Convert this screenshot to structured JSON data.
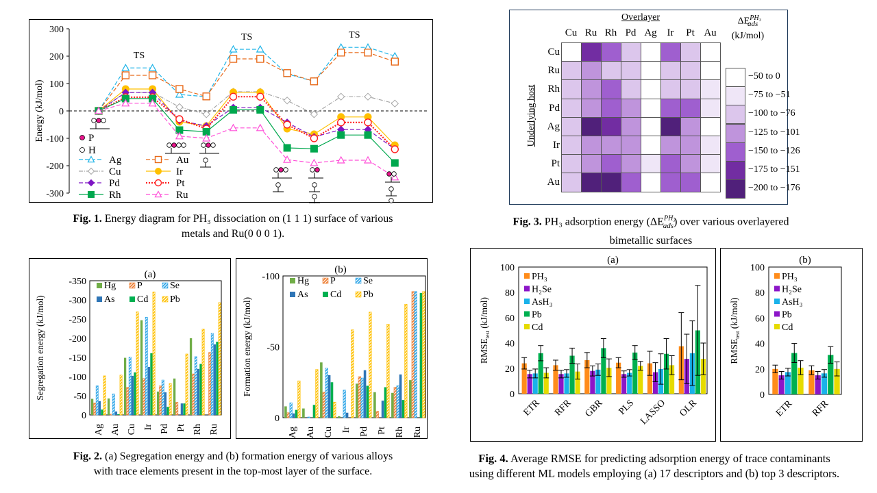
{
  "colors": {
    "Ag": "#1fb4e8",
    "Au": "#e86a1a",
    "Cu": "#a6a6a6",
    "Ir": "#ffc000",
    "Pd": "#7f16c4",
    "Pt": "#ff1f1f",
    "Rh": "#00a84e",
    "Ru": "#ff4fd8",
    "P_atom": "#e8168c",
    "Hg": "#70ad47",
    "P": "#ed7d31",
    "Se": "#2fa6e8",
    "As": "#2e75b6",
    "Cd": "#00b050",
    "Pb": "#ffc000",
    "PH3": "#ff8c1a",
    "H2Se": "#8c16c8",
    "AsH3": "#1ab2ea",
    "Pb_rmse": "#00b050",
    "Cd_rmse": "#e6db00",
    "heat": [
      "#ffffff",
      "#efe6f7",
      "#dcc6ec",
      "#bf94dc",
      "#9f5fcf",
      "#722da2",
      "#50207a"
    ]
  },
  "fig1": {
    "caption_bold": "Fig. 1.",
    "caption_line1": " Energy diagram for PH₃ dissociation on (1 1 1) surface of various",
    "caption_line2": "metals and Ru(0 0 0 1).",
    "legend_atoms": [
      {
        "label": "P"
      },
      {
        "label": "H"
      }
    ],
    "ts_label": "TS"
  },
  "fig2": {
    "caption_bold": "Fig. 2.",
    "caption_line1": " (a) Segregation energy and (b) formation energy of various alloys",
    "caption_line2": "with trace elements present in the top-most layer of the surface."
  },
  "fig3": {
    "caption_bold": "Fig. 3.",
    "caption_line1_pre": " PH₃ adsorption energy (ΔE",
    "caption_sup": "PH₃",
    "caption_sub": "ads",
    "caption_line1_post": ") over various overlayered",
    "caption_line2": "bimetallic  surfaces",
    "overlayer_label": "Overlayer",
    "host_label": "Underlying  host",
    "legend_title_main": "ΔE",
    "legend_title_sup": "PH₃",
    "legend_title_sub": "ads",
    "legend_units": "(kJ/mol)"
  },
  "fig4": {
    "caption_bold": "Fig. 4.",
    "caption_line1": " Average RMSE for predicting adsorption energy of trace contaminants",
    "caption_line2": "using different ML models employing  (a) 17 descriptors and (b) top 3 descriptors."
  },
  "chart_data": [
    {
      "id": "fig1",
      "type": "line",
      "title": "",
      "xlabel": "",
      "ylabel": "Energy (kJ/mol)",
      "ylim": [
        -300,
        300
      ],
      "yticks": [
        -300,
        -200,
        -100,
        0,
        100,
        200,
        300
      ],
      "x": [
        0,
        1,
        2,
        3,
        4,
        5,
        6,
        7,
        8,
        9,
        10,
        11
      ],
      "annotations": [
        {
          "text": "TS",
          "at_x": 1.5
        },
        {
          "text": "TS",
          "at_x": 5.5
        },
        {
          "text": "TS",
          "at_x": 9.5
        }
      ],
      "zero_line": "dashed",
      "legend": "bottom-left",
      "series": [
        {
          "name": "Ag",
          "marker": "triangle-open",
          "dash": "dashed",
          "values": [
            0,
            157,
            157,
            60,
            52,
            225,
            225,
            135,
            108,
            232,
            232,
            200
          ]
        },
        {
          "name": "Au",
          "marker": "square-open",
          "dash": "dashed",
          "values": [
            0,
            130,
            130,
            80,
            53,
            190,
            190,
            138,
            108,
            213,
            213,
            180
          ]
        },
        {
          "name": "Cu",
          "marker": "diamond-open",
          "dash": "dashdot",
          "values": [
            0,
            68,
            68,
            14,
            -12,
            70,
            70,
            38,
            -12,
            52,
            52,
            27
          ]
        },
        {
          "name": "Ir",
          "marker": "circle-filled",
          "dash": "solid",
          "values": [
            0,
            80,
            80,
            -40,
            -55,
            68,
            68,
            -65,
            -85,
            -22,
            -22,
            -125
          ]
        },
        {
          "name": "Pd",
          "marker": "diamond-filled",
          "dash": "dashed",
          "values": [
            0,
            67,
            67,
            -35,
            -55,
            12,
            12,
            -42,
            -95,
            -68,
            -68,
            -140
          ]
        },
        {
          "name": "Pt",
          "marker": "circle-open",
          "dash": "dotted",
          "values": [
            0,
            50,
            50,
            -30,
            -65,
            52,
            52,
            -50,
            -100,
            -42,
            -42,
            -140
          ]
        },
        {
          "name": "Rh",
          "marker": "square-filled",
          "dash": "solid",
          "values": [
            0,
            45,
            45,
            -70,
            -76,
            4,
            4,
            -135,
            -138,
            -88,
            -88,
            -190
          ]
        },
        {
          "name": "Ru",
          "marker": "triangle-open",
          "dash": "dashed",
          "values": [
            0,
            28,
            28,
            -92,
            -100,
            -62,
            -62,
            -178,
            -190,
            -180,
            -180,
            -242
          ]
        }
      ]
    },
    {
      "id": "fig2a",
      "type": "bar",
      "title": "(a)",
      "ylabel": "Segregation  energy  (kJ/mol)",
      "ylim": [
        0,
        -350
      ],
      "yticks": [
        0,
        -50,
        -100,
        -150,
        -200,
        -250,
        -300,
        -350
      ],
      "categories": [
        "Ag",
        "Au",
        "Cu",
        "Ir",
        "Pd",
        "Pt",
        "Rh",
        "Ru"
      ],
      "legend": "top-left",
      "series": [
        {
          "name": "Hg",
          "pattern": "solid",
          "values": [
            -42,
            -43,
            -149,
            -247,
            -61,
            -95,
            -200,
            0
          ]
        },
        {
          "name": "P",
          "pattern": "hatch",
          "values": [
            -31,
            -2,
            -72,
            -95,
            -76,
            -33,
            -107,
            -163
          ]
        },
        {
          "name": "Se",
          "pattern": "hatch",
          "values": [
            -76,
            -55,
            -151,
            -255,
            -91,
            0,
            -152,
            -213
          ]
        },
        {
          "name": "As",
          "pattern": "solid",
          "values": [
            -36,
            -9,
            -102,
            -125,
            -59,
            -30,
            -120,
            -184
          ]
        },
        {
          "name": "Cd",
          "pattern": "solid",
          "values": [
            -14,
            -2,
            -111,
            -161,
            -21,
            -30,
            -133,
            -191
          ]
        },
        {
          "name": "Pb",
          "pattern": "hatch",
          "values": [
            -102,
            -104,
            -269,
            -321,
            -82,
            -159,
            -224,
            -293
          ]
        }
      ]
    },
    {
      "id": "fig2b",
      "type": "bar",
      "title": "(b)",
      "ylabel": "Formation  energy  (kJ/mol)",
      "ylim": [
        0,
        -100
      ],
      "yticks": [
        0,
        -50,
        -100
      ],
      "categories": [
        "Ag",
        "Au",
        "Cu",
        "Ir",
        "Pd",
        "Pt",
        "Rh",
        "Ru"
      ],
      "legend": "top-left",
      "series": [
        {
          "name": "Hg",
          "pattern": "solid",
          "values": [
            -8,
            -6.5,
            -39,
            -1,
            -24,
            -18,
            -17.5,
            -26.5
          ]
        },
        {
          "name": "P",
          "pattern": "hatch",
          "values": [
            -3.5,
            0,
            -18,
            0,
            -29,
            -4.5,
            -21.5,
            -89
          ]
        },
        {
          "name": "Se",
          "pattern": "hatch",
          "values": [
            -10.5,
            -0.5,
            -35,
            -19.5,
            -28,
            0,
            -22.5,
            -89
          ]
        },
        {
          "name": "As",
          "pattern": "solid",
          "values": [
            -3,
            0,
            -30,
            -3.5,
            -33.5,
            -12,
            -30.5,
            0
          ]
        },
        {
          "name": "Cd",
          "pattern": "solid",
          "values": [
            -5.5,
            -9,
            -25,
            0,
            -22.5,
            -21.5,
            -12.5,
            -88
          ]
        },
        {
          "name": "Pb",
          "pattern": "hatch",
          "values": [
            -26,
            -34,
            -11,
            -62,
            -74.5,
            -66,
            -80,
            -89
          ]
        }
      ]
    },
    {
      "id": "fig3",
      "type": "heatmap",
      "title": "",
      "xlabel": "Overlayer",
      "ylabel": "Underlying  host",
      "x_categories": [
        "Cu",
        "Ru",
        "Rh",
        "Pd",
        "Ag",
        "Ir",
        "Pt",
        "Au"
      ],
      "y_categories": [
        "Cu",
        "Ru",
        "Rh",
        "Pd",
        "Ag",
        "Ir",
        "Pt",
        "Au"
      ],
      "legend_bins": [
        "−50 to 0",
        "−75 to −51",
        "−100 to −76",
        "−125 to −101",
        "−150 to −126",
        "−175 to −151",
        "−200 to −176"
      ],
      "bin_index_matrix": [
        [
          0,
          5,
          4,
          2,
          0,
          4,
          2,
          0
        ],
        [
          2,
          3,
          2,
          2,
          0,
          2,
          2,
          0
        ],
        [
          2,
          3,
          4,
          2,
          0,
          2,
          2,
          1
        ],
        [
          2,
          3,
          4,
          3,
          0,
          4,
          4,
          1
        ],
        [
          2,
          6,
          5,
          3,
          0,
          6,
          3,
          0
        ],
        [
          2,
          3,
          3,
          3,
          0,
          3,
          3,
          1
        ],
        [
          2,
          3,
          4,
          3,
          1,
          4,
          3,
          1
        ],
        [
          2,
          6,
          6,
          4,
          0,
          4,
          4,
          0
        ]
      ]
    },
    {
      "id": "fig4a",
      "type": "bar",
      "title": "(a)",
      "ylabel": "RMSE_test (kJ/mol)",
      "ylim": [
        0,
        100
      ],
      "yticks": [
        0,
        20,
        40,
        60,
        80,
        100
      ],
      "categories": [
        "ETR",
        "RFR",
        "GBR",
        "PLS",
        "LASSO",
        "OLR"
      ],
      "legend": "top-left",
      "series": [
        {
          "name": "PH₃",
          "values": [
            24,
            22.5,
            26.5,
            24.5,
            24,
            37.5
          ],
          "errors": [
            4.5,
            4,
            6,
            4,
            9.5,
            26.5
          ]
        },
        {
          "name": "H₂Se",
          "values": [
            15.5,
            15.5,
            18,
            15.5,
            17,
            27.5
          ],
          "errors": [
            3,
            3,
            4,
            2.5,
            7.5,
            19.5
          ]
        },
        {
          "name": "AsH₃",
          "values": [
            16,
            16,
            19,
            16.5,
            19.5,
            32
          ],
          "errors": [
            3.5,
            3,
            4.5,
            2.5,
            12,
            25.5
          ]
        },
        {
          "name": "Pb",
          "values": [
            32,
            30,
            36,
            32.5,
            31.5,
            50
          ],
          "errors": [
            6,
            6,
            7.5,
            5.5,
            12,
            35.5
          ]
        },
        {
          "name": "Cd",
          "values": [
            16.5,
            17.5,
            20.5,
            22,
            22.5,
            27.5
          ],
          "errors": [
            4,
            6,
            7,
            3.5,
            7.5,
            12.5
          ]
        }
      ]
    },
    {
      "id": "fig4b",
      "type": "bar",
      "title": "(b)",
      "ylabel": "RMSE_test (kJ/mol)",
      "ylim": [
        0,
        100
      ],
      "yticks": [
        0,
        20,
        40,
        60,
        80,
        100
      ],
      "categories": [
        "ETR",
        "RFR"
      ],
      "legend": "top-left",
      "series": [
        {
          "name": "PH₃",
          "values": [
            20,
            19
          ],
          "errors": [
            3,
            3.5
          ]
        },
        {
          "name": "H₂Se",
          "values": [
            15,
            15
          ],
          "errors": [
            3,
            3
          ]
        },
        {
          "name": "AsH₃",
          "values": [
            17.5,
            16.5
          ],
          "errors": [
            3,
            3
          ]
        },
        {
          "name": "Pb",
          "values": [
            32.5,
            31
          ],
          "errors": [
            7.5,
            6.5
          ]
        },
        {
          "name": "Cd",
          "values": [
            21,
            20
          ],
          "errors": [
            5.5,
            5.5
          ]
        }
      ]
    }
  ]
}
